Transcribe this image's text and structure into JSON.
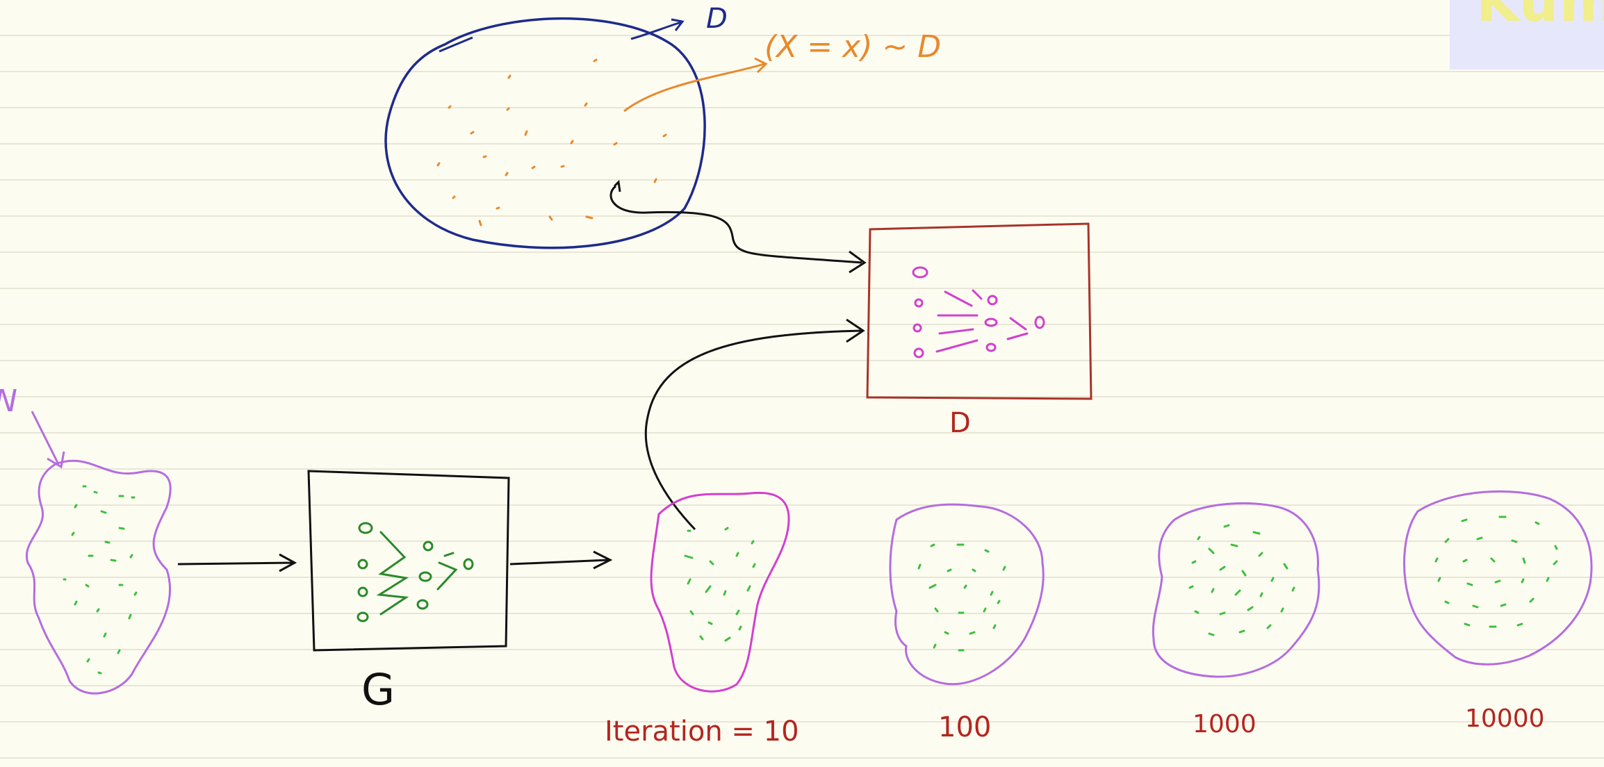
{
  "labels": {
    "data_distribution": "D",
    "sample_notation": "(X = x) ~ D",
    "discriminator": "D",
    "generator": "G",
    "noise": "N",
    "iter_10": "Iteration = 10",
    "iter_100": "100",
    "iter_1000": "1000",
    "iter_10000": "10000",
    "watermark": "Kum"
  },
  "colors": {
    "distribution_circle": "#1e2a8c",
    "orange": "#e8892c",
    "discriminator_box": "#a8332a",
    "label_red": "#b3261e",
    "purple": "#b46ce0",
    "magenta": "#d23fd0",
    "green_dots": "#3cbf3c",
    "generator_green": "#2a8a2a",
    "arrow": "#111111",
    "watermark_bg": "#e6e7fa",
    "watermark_text": "#f1ee8c"
  }
}
